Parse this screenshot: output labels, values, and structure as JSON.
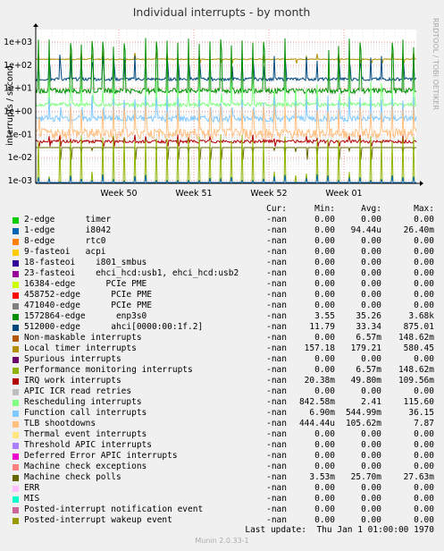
{
  "chart_data": {
    "type": "line",
    "title": "Individual interrupts - by month",
    "ylabel": "interrupts / second",
    "yscale": "log",
    "y_ticks": [
      "1e-03",
      "1e-02",
      "1e-01",
      "1e+00",
      "1e+01",
      "1e+02",
      "1e+03"
    ],
    "x_ticks": [
      "Week 50",
      "Week 51",
      "Week 52",
      "Week 01"
    ],
    "side_text": "RRDTOOL / TOBI OETIKER",
    "columns": [
      "Cur:",
      "Min:",
      "Avg:",
      "Max:"
    ],
    "series": [
      {
        "name": "2-edge      timer",
        "color": "#00cc00",
        "cur": "-nan",
        "min": "0.00",
        "avg": "0.00",
        "max": "0.00"
      },
      {
        "name": "1-edge      i8042",
        "color": "#0066b3",
        "cur": "-nan",
        "min": "0.00",
        "avg": "94.44u",
        "max": "26.40m"
      },
      {
        "name": "8-edge      rtc0",
        "color": "#ff8000",
        "cur": "-nan",
        "min": "0.00",
        "avg": "0.00",
        "max": "0.00"
      },
      {
        "name": "9-fasteoi   acpi",
        "color": "#ffcc00",
        "cur": "-nan",
        "min": "0.00",
        "avg": "0.00",
        "max": "0.00"
      },
      {
        "name": "18-fasteoi    i801_smbus",
        "color": "#330099",
        "cur": "-nan",
        "min": "0.00",
        "avg": "0.00",
        "max": "0.00"
      },
      {
        "name": "23-fasteoi    ehci_hcd:usb1, ehci_hcd:usb2",
        "color": "#990099",
        "cur": "-nan",
        "min": "0.00",
        "avg": "0.00",
        "max": "0.00"
      },
      {
        "name": "16384-edge      PCIe PME",
        "color": "#ccff00",
        "cur": "-nan",
        "min": "0.00",
        "avg": "0.00",
        "max": "0.00"
      },
      {
        "name": "458752-edge      PCIe PME",
        "color": "#ff0000",
        "cur": "-nan",
        "min": "0.00",
        "avg": "0.00",
        "max": "0.00"
      },
      {
        "name": "471040-edge      PCIe PME",
        "color": "#808080",
        "cur": "-nan",
        "min": "0.00",
        "avg": "0.00",
        "max": "0.00"
      },
      {
        "name": "1572864-edge      enp3s0",
        "color": "#008f00",
        "cur": "-nan",
        "min": "3.55",
        "avg": "35.26",
        "max": "3.68k"
      },
      {
        "name": "512000-edge      ahci[0000:00:1f.2]",
        "color": "#00487d",
        "cur": "-nan",
        "min": "11.79",
        "avg": "33.34",
        "max": "875.01"
      },
      {
        "name": "Non-maskable interrupts",
        "color": "#b35a00",
        "cur": "-nan",
        "min": "0.00",
        "avg": "6.57m",
        "max": "148.62m"
      },
      {
        "name": "Local timer interrupts",
        "color": "#b38f00",
        "cur": "-nan",
        "min": "157.18",
        "avg": "179.21",
        "max": "580.45"
      },
      {
        "name": "Spurious interrupts",
        "color": "#6b006b",
        "cur": "-nan",
        "min": "0.00",
        "avg": "0.00",
        "max": "0.00"
      },
      {
        "name": "Performance monitoring interrupts",
        "color": "#8fb300",
        "cur": "-nan",
        "min": "0.00",
        "avg": "6.57m",
        "max": "148.62m"
      },
      {
        "name": "IRQ work interrupts",
        "color": "#b30000",
        "cur": "-nan",
        "min": "20.38m",
        "avg": "49.80m",
        "max": "109.56m"
      },
      {
        "name": "APIC ICR read retries",
        "color": "#bebebe",
        "cur": "-nan",
        "min": "0.00",
        "avg": "0.00",
        "max": "0.00"
      },
      {
        "name": "Rescheduling interrupts",
        "color": "#80ff80",
        "cur": "-nan",
        "min": "842.58m",
        "avg": "2.41",
        "max": "115.60"
      },
      {
        "name": "Function call interrupts",
        "color": "#80c9ff",
        "cur": "-nan",
        "min": "6.90m",
        "avg": "544.99m",
        "max": "36.15"
      },
      {
        "name": "TLB shootdowns",
        "color": "#ffc080",
        "cur": "-nan",
        "min": "444.44u",
        "avg": "105.62m",
        "max": "7.87"
      },
      {
        "name": "Thermal event interrupts",
        "color": "#ffe680",
        "cur": "-nan",
        "min": "0.00",
        "avg": "0.00",
        "max": "0.00"
      },
      {
        "name": "Threshold APIC interrupts",
        "color": "#aa80ff",
        "cur": "-nan",
        "min": "0.00",
        "avg": "0.00",
        "max": "0.00"
      },
      {
        "name": "Deferred Error APIC interrupts",
        "color": "#ee00cc",
        "cur": "-nan",
        "min": "0.00",
        "avg": "0.00",
        "max": "0.00"
      },
      {
        "name": "Machine check exceptions",
        "color": "#ff8080",
        "cur": "-nan",
        "min": "0.00",
        "avg": "0.00",
        "max": "0.00"
      },
      {
        "name": "Machine check polls",
        "color": "#666600",
        "cur": "-nan",
        "min": "3.53m",
        "avg": "25.70m",
        "max": "27.63m"
      },
      {
        "name": "ERR",
        "color": "#ffbfff",
        "cur": "-nan",
        "min": "0.00",
        "avg": "0.00",
        "max": "0.00"
      },
      {
        "name": "MIS",
        "color": "#00ffcc",
        "cur": "-nan",
        "min": "0.00",
        "avg": "0.00",
        "max": "0.00"
      },
      {
        "name": "Posted-interrupt notification event",
        "color": "#cc6699",
        "cur": "-nan",
        "min": "0.00",
        "avg": "0.00",
        "max": "0.00"
      },
      {
        "name": "Posted-interrupt wakeup event",
        "color": "#999900",
        "cur": "-nan",
        "min": "0.00",
        "avg": "0.00",
        "max": "0.00"
      }
    ],
    "plotted": [
      {
        "name": "Local timer interrupts",
        "color": "#b38f00",
        "level": 180,
        "spike": 400,
        "noise": 0.05
      },
      {
        "name": "512000-edge      ahci[0000:00:1f.2]",
        "color": "#00487d",
        "level": 25,
        "spike": 300,
        "noise": 0.15
      },
      {
        "name": "1572864-edge      enp3s0",
        "color": "#008f00",
        "level": 8,
        "spike": 1500,
        "noise": 0.25
      },
      {
        "name": "Rescheduling interrupts",
        "color": "#80ff80",
        "level": 2,
        "spike": 20,
        "noise": 0.2
      },
      {
        "name": "Function call interrupts",
        "color": "#80c9ff",
        "level": 0.5,
        "spike": 5,
        "noise": 0.3
      },
      {
        "name": "TLB shootdowns",
        "color": "#ffc080",
        "level": 0.12,
        "spike": 2,
        "noise": 0.5
      },
      {
        "name": "IRQ work interrupts",
        "color": "#b30000",
        "level": 0.05,
        "spike": 0.1,
        "noise": 0.15
      },
      {
        "name": "Machine check polls",
        "color": "#666600",
        "level": 0.027,
        "spike": 0.027,
        "noise": 0.0
      },
      {
        "name": "Non-maskable interrupts",
        "color": "#8fb300",
        "level": 0.002,
        "spike": 0.1,
        "noise": 0.3
      },
      {
        "name": "1-edge      i8042",
        "color": "#0066b3",
        "level": 0.001,
        "spike": 0.002,
        "noise": 0.0
      }
    ],
    "last_update_label": "Last update:",
    "last_update_value": "Thu Jan  1 01:00:00 1970",
    "footer": "Munin 2.0.33-1"
  }
}
